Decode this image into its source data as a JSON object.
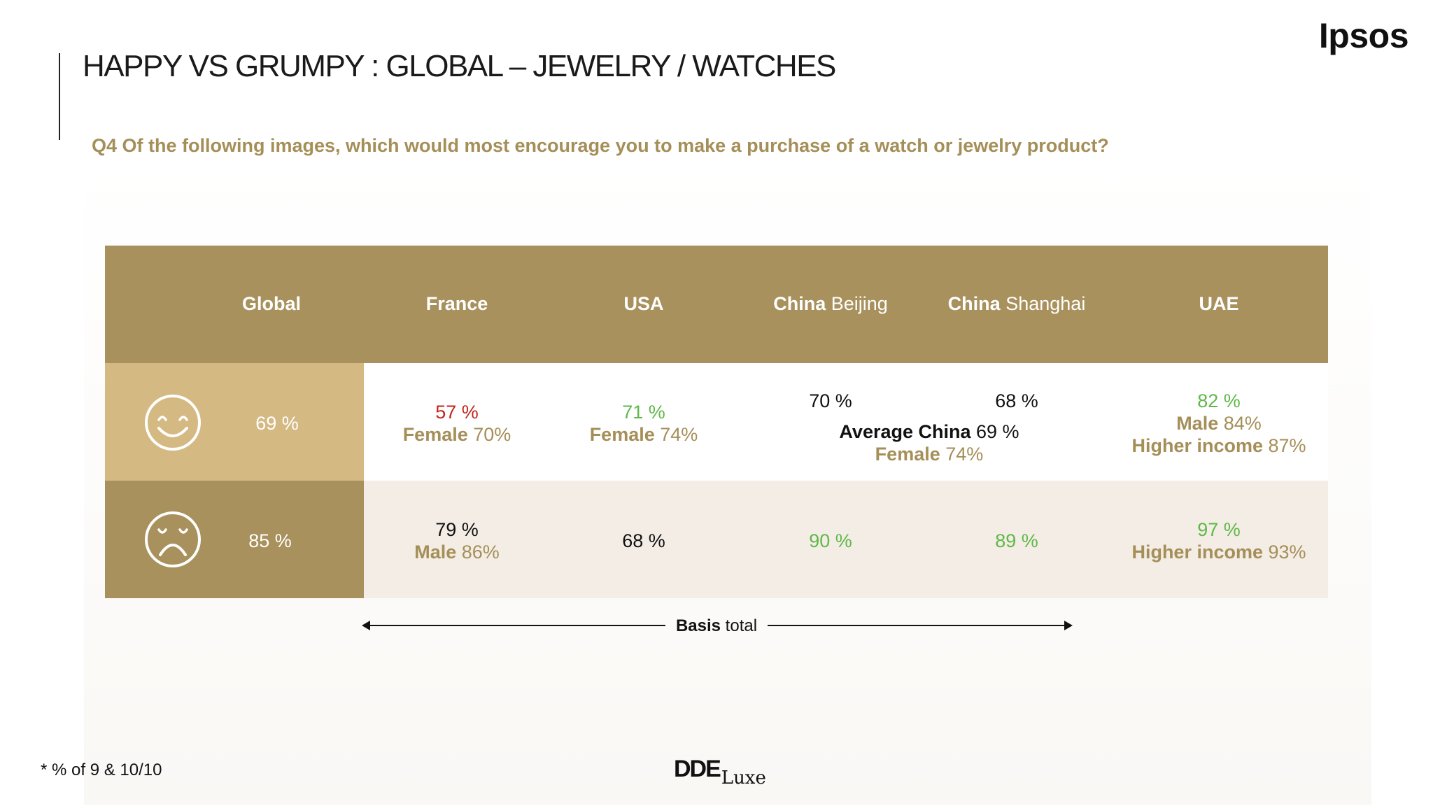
{
  "header": {
    "title": "HAPPY VS GRUMPY : GLOBAL – JEWELRY / WATCHES",
    "logo": "Ipsos",
    "question": "Q4 Of the following images, which would most encourage you to make a purchase of a watch or jewelry product?"
  },
  "columns": {
    "global": "Global",
    "france": "France",
    "usa": "USA",
    "beijing_country": "China",
    "beijing_city": "Beijing",
    "shanghai_country": "China",
    "shanghai_city": "Shanghai",
    "uae": "UAE"
  },
  "rows": {
    "happy": {
      "icon": "smiley-face-icon",
      "global": "69 %",
      "france": {
        "value": "57 %",
        "seg_label": "Female",
        "seg_value": "70%"
      },
      "usa": {
        "value": "71 %",
        "seg_label": "Female",
        "seg_value": "74%"
      },
      "beijing": "70 %",
      "shanghai": "68 %",
      "china_avg": {
        "label": "Average China",
        "value": "69 %",
        "seg_label": "Female",
        "seg_value": "74%"
      },
      "uae": {
        "value": "82 %",
        "seg1_label": "Male",
        "seg1_value": "84%",
        "seg2_label": "Higher income",
        "seg2_value": "87%"
      }
    },
    "grumpy": {
      "icon": "frowny-face-icon",
      "global": "85 %",
      "france": {
        "value": "79 %",
        "seg_label": "Male",
        "seg_value": "86%"
      },
      "usa": "68 %",
      "beijing": "90 %",
      "shanghai": "89 %",
      "uae": {
        "value": "97 %",
        "seg_label": "Higher income",
        "seg_value": "93%"
      }
    }
  },
  "basis": {
    "bold": "Basis",
    "rest": "total"
  },
  "footer": {
    "footnote": "* % of 9 & 10/10",
    "brand_bold": "DDE",
    "brand_script": "Luxe"
  },
  "colors": {
    "header_gold": "#a8915c",
    "light_gold": "#d4b982",
    "question_gold": "#a58f58",
    "negative_red": "#c0261d",
    "positive_green": "#5fb848",
    "row_beige": "#f3ede5"
  }
}
